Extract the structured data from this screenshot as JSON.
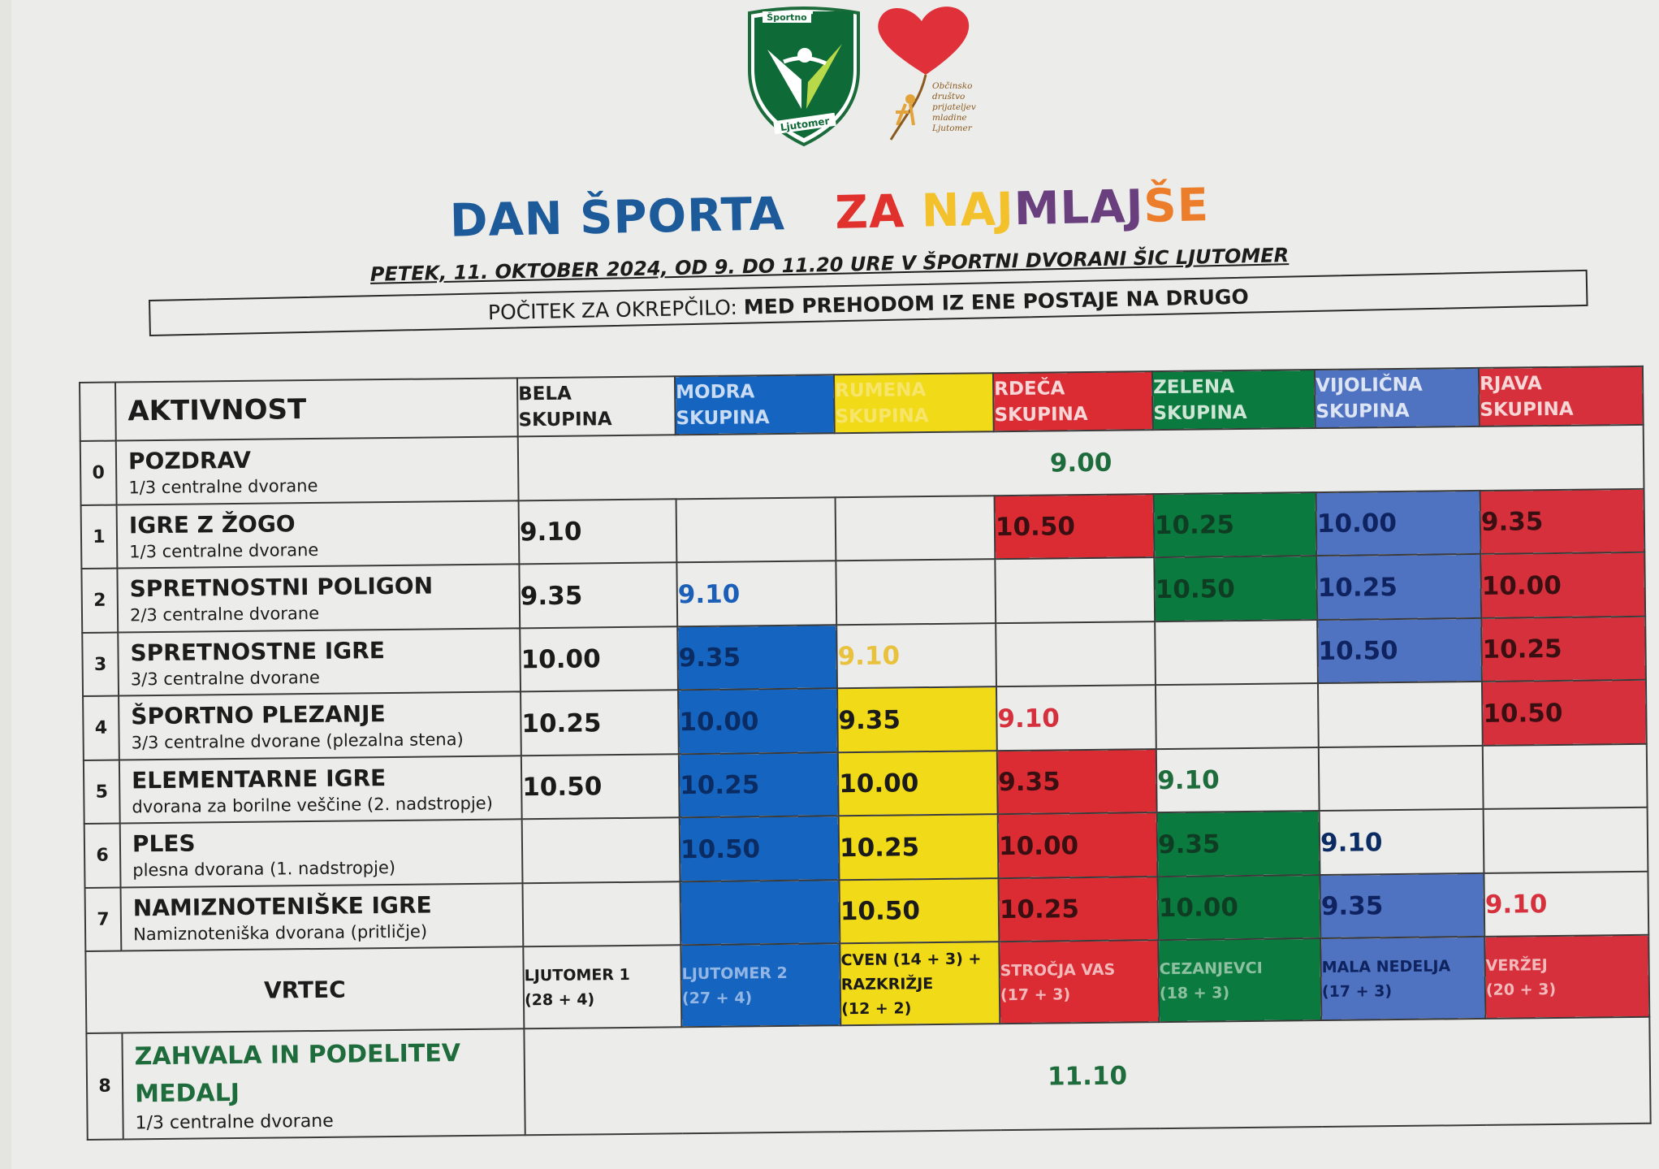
{
  "logos": {
    "shield_text_top": "Športno",
    "shield_text_bottom": "Ljutomer",
    "heart_text": "Občinsko društvo prijateljev mladine Ljutomer"
  },
  "title": {
    "part1": "DAN ŠPORTA",
    "part2_letters": [
      "Z",
      "A",
      " ",
      "N",
      "A",
      "J",
      "M",
      "L",
      "A",
      "J",
      "Š",
      "E"
    ]
  },
  "subtitle": "PETEK, 11. OKTOBER 2024, OD 9. DO 11.20 URE V ŠPORTNI DVORANI ŠIC LJUTOMER",
  "banner": {
    "label": "POČITEK ZA OKREPČILO:",
    "value": "MED PREHODOM IZ ENE POSTAJE NA DRUGO"
  },
  "table": {
    "header_activity": "AKTIVNOST",
    "groups": [
      {
        "line1": "BELA",
        "line2": "SKUPINA"
      },
      {
        "line1": "MODRA",
        "line2": "SKUPINA"
      },
      {
        "line1": "RUMENA",
        "line2": "SKUPINA"
      },
      {
        "line1": "RDEČA",
        "line2": "SKUPINA"
      },
      {
        "line1": "ZELENA",
        "line2": "SKUPINA"
      },
      {
        "line1": "VIJOLIČNA",
        "line2": "SKUPINA"
      },
      {
        "line1": "RJAVA",
        "line2": "SKUPINA"
      }
    ],
    "pozdrav": {
      "num": "0",
      "name": "POZDRAV",
      "loc": "1/3 centralne dvorane",
      "time": "9.00"
    },
    "rows": [
      {
        "num": "1",
        "name": "IGRE Z ŽOGO",
        "loc": "1/3 centralne dvorane",
        "cells": [
          "9.10",
          "",
          "",
          "10.50",
          "10.25",
          "10.00",
          "9.35"
        ]
      },
      {
        "num": "2",
        "name": "SPRETNOSTNI POLIGON",
        "loc": "2/3 centralne dvorane",
        "cells": [
          "9.35",
          "9.10",
          "",
          "",
          "10.50",
          "10.25",
          "10.00"
        ]
      },
      {
        "num": "3",
        "name": "SPRETNOSTNE IGRE",
        "loc": "3/3 centralne dvorane",
        "cells": [
          "10.00",
          "9.35",
          "9.10",
          "",
          "",
          "10.50",
          "10.25"
        ]
      },
      {
        "num": "4",
        "name": "ŠPORTNO PLEZANJE",
        "loc": "3/3 centralne dvorane (plezalna stena)",
        "cells": [
          "10.25",
          "10.00",
          "9.35",
          "9.10",
          "",
          "",
          "10.50"
        ]
      },
      {
        "num": "5",
        "name": "ELEMENTARNE IGRE",
        "loc": "dvorana za borilne veščine (2. nadstropje)",
        "cells": [
          "10.50",
          "10.25",
          "10.00",
          "9.35",
          "9.10",
          "",
          ""
        ]
      },
      {
        "num": "6",
        "name": "PLES",
        "loc": "plesna dvorana (1. nadstropje)",
        "cells": [
          "",
          "10.50",
          "10.25",
          "10.00",
          "9.35",
          "9.10",
          ""
        ]
      },
      {
        "num": "7",
        "name": "NAMIZNOTENIŠKE IGRE",
        "loc": "Namiznoteniška dvorana (pritličje)",
        "cells": [
          "",
          "",
          "10.50",
          "10.25",
          "10.00",
          "9.35",
          "9.10"
        ]
      }
    ],
    "vrtec": {
      "label": "VRTEC",
      "values": [
        {
          "line1": "LJUTOMER 1",
          "line2": "(28 + 4)",
          "line3": ""
        },
        {
          "line1": "LJUTOMER 2",
          "line2": "(27 + 4)",
          "line3": ""
        },
        {
          "line1": "CVEN (14 + 3) +",
          "line2": "RAZKRIŽJE",
          "line3": "(12 + 2)"
        },
        {
          "line1": "STROČJA VAS",
          "line2": "(17 + 3)",
          "line3": ""
        },
        {
          "line1": "CEZANJEVCI",
          "line2": "(18 + 3)",
          "line3": ""
        },
        {
          "line1": "MALA NEDELJA",
          "line2": "(17 + 3)",
          "line3": ""
        },
        {
          "line1": "VERŽEJ",
          "line2": "(20 + 3)",
          "line3": ""
        }
      ]
    },
    "zahvala": {
      "num": "8",
      "name_line1": "ZAHVALA IN PODELITEV",
      "name_line2": "MEDALJ",
      "loc": "1/3 centralne dvorane",
      "time": "11.10"
    }
  },
  "colors": {
    "bela": "#ececea",
    "modra": "#1565c0",
    "rumena": "#f1da17",
    "rdeca": "#db2b33",
    "zelena": "#0b7a3e",
    "vijolicna": "#4f73c0",
    "rjava": "#d6303c"
  },
  "icons": [
    "sport-club-shield-icon",
    "heart-balloon-icon"
  ]
}
